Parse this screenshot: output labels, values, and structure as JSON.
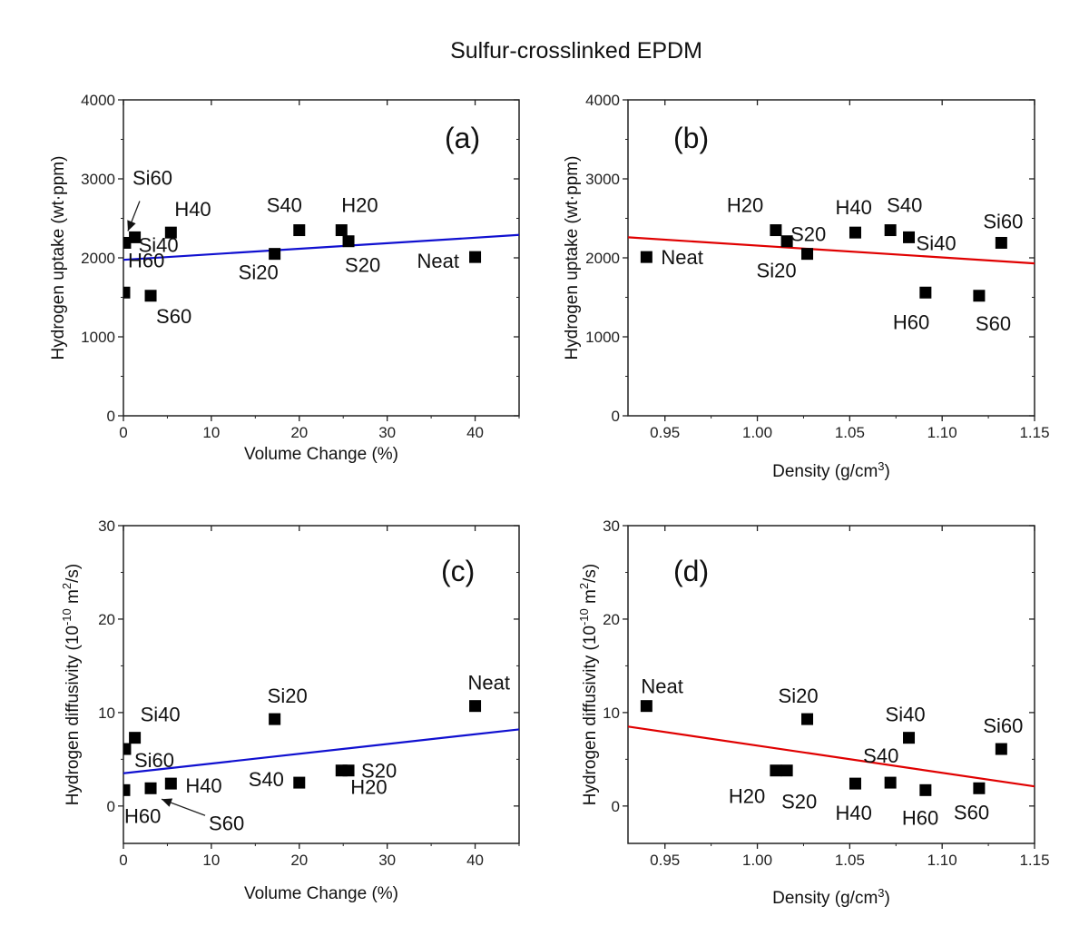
{
  "title": "Sulfur-crosslinked EPDM",
  "chart_data": [
    {
      "id": "a",
      "type": "scatter",
      "panel_label": "(a)",
      "xlabel": "Volume Change (%)",
      "ylabel": "Hydrogen uptake (wt·ppm)",
      "xlim": [
        0,
        45
      ],
      "ylim": [
        0,
        4000
      ],
      "xticks": [
        0,
        10,
        20,
        30,
        40
      ],
      "xtick_labels": [
        "0",
        "10",
        "20",
        "30",
        "40"
      ],
      "yticks": [
        0,
        1000,
        2000,
        3000,
        4000
      ],
      "ytick_labels": [
        "0",
        "1000",
        "2000",
        "3000",
        "4000"
      ],
      "marker_color": "#000000",
      "fit_line": {
        "color": "#1010d0",
        "x": [
          0,
          45
        ],
        "y": [
          1975,
          2290
        ]
      },
      "points": [
        {
          "name": "Si60",
          "x": 0.2,
          "y": 2190
        },
        {
          "name": "Si40",
          "x": 1.3,
          "y": 2260
        },
        {
          "name": "H60",
          "x": 0.1,
          "y": 1560
        },
        {
          "name": "S60",
          "x": 3.1,
          "y": 1520
        },
        {
          "name": "H40",
          "x": 5.4,
          "y": 2320
        },
        {
          "name": "Si20",
          "x": 17.2,
          "y": 2050
        },
        {
          "name": "S40",
          "x": 20.0,
          "y": 2350
        },
        {
          "name": "H20",
          "x": 24.8,
          "y": 2350
        },
        {
          "name": "S20",
          "x": 25.6,
          "y": 2210
        },
        {
          "name": "Neat",
          "x": 40.0,
          "y": 2010
        }
      ],
      "annotations": [
        {
          "text": "Si60",
          "arrow_to": "Si60"
        }
      ]
    },
    {
      "id": "b",
      "type": "scatter",
      "panel_label": "(b)",
      "xlabel": "Density (g/cm3)",
      "ylabel": "Hydrogen uptake (wt·ppm)",
      "xlim": [
        0.93,
        1.15
      ],
      "ylim": [
        0,
        4000
      ],
      "xticks": [
        0.95,
        1.0,
        1.05,
        1.1,
        1.15
      ],
      "xtick_labels": [
        "0.95",
        "1.00",
        "1.05",
        "1.10",
        "1.15"
      ],
      "yticks": [
        0,
        1000,
        2000,
        3000,
        4000
      ],
      "ytick_labels": [
        "0",
        "1000",
        "2000",
        "3000",
        "4000"
      ],
      "marker_color": "#000000",
      "fit_line": {
        "color": "#e00000",
        "x": [
          0.93,
          1.15
        ],
        "y": [
          2260,
          1930
        ]
      },
      "points": [
        {
          "name": "Neat",
          "x": 0.94,
          "y": 2010
        },
        {
          "name": "H20",
          "x": 1.01,
          "y": 2350
        },
        {
          "name": "S20",
          "x": 1.016,
          "y": 2210
        },
        {
          "name": "Si20",
          "x": 1.027,
          "y": 2050
        },
        {
          "name": "H40",
          "x": 1.053,
          "y": 2320
        },
        {
          "name": "S40",
          "x": 1.072,
          "y": 2350
        },
        {
          "name": "Si40",
          "x": 1.082,
          "y": 2260
        },
        {
          "name": "H60",
          "x": 1.091,
          "y": 1560
        },
        {
          "name": "S60",
          "x": 1.12,
          "y": 1520
        },
        {
          "name": "Si60",
          "x": 1.132,
          "y": 2190
        }
      ]
    },
    {
      "id": "c",
      "type": "scatter",
      "panel_label": "(c)",
      "xlabel": "Volume Change (%)",
      "ylabel": "Hydrogen diffusivity (10-10 m2/s)",
      "xlim": [
        0,
        45
      ],
      "ylim": [
        -4,
        30
      ],
      "xticks": [
        0,
        10,
        20,
        30,
        40
      ],
      "xtick_labels": [
        "0",
        "10",
        "20",
        "30",
        "40"
      ],
      "yticks": [
        0,
        10,
        20,
        30
      ],
      "ytick_labels": [
        "0",
        "10",
        "20",
        "30"
      ],
      "marker_color": "#000000",
      "fit_line": {
        "color": "#1010d0",
        "x": [
          0,
          45
        ],
        "y": [
          3.5,
          8.2
        ]
      },
      "points": [
        {
          "name": "Si60",
          "x": 0.2,
          "y": 6.1
        },
        {
          "name": "Si40",
          "x": 1.3,
          "y": 7.3
        },
        {
          "name": "H60",
          "x": 0.1,
          "y": 1.7
        },
        {
          "name": "S60",
          "x": 3.1,
          "y": 1.9
        },
        {
          "name": "H40",
          "x": 5.4,
          "y": 2.4
        },
        {
          "name": "Si20",
          "x": 17.2,
          "y": 9.3
        },
        {
          "name": "S40",
          "x": 20.0,
          "y": 2.5
        },
        {
          "name": "H20",
          "x": 24.8,
          "y": 3.8
        },
        {
          "name": "S20",
          "x": 25.6,
          "y": 3.8
        },
        {
          "name": "Neat",
          "x": 40.0,
          "y": 10.7
        }
      ],
      "annotations": [
        {
          "text": "S60",
          "arrow_to": "S60"
        }
      ]
    },
    {
      "id": "d",
      "type": "scatter",
      "panel_label": "(d)",
      "xlabel": "Density (g/cm3)",
      "ylabel": "Hydrogen diffusivity (10-10 m2/s)",
      "xlim": [
        0.93,
        1.15
      ],
      "ylim": [
        -4,
        30
      ],
      "xticks": [
        0.95,
        1.0,
        1.05,
        1.1,
        1.15
      ],
      "xtick_labels": [
        "0.95",
        "1.00",
        "1.05",
        "1.10",
        "1.15"
      ],
      "yticks": [
        0,
        10,
        20,
        30
      ],
      "ytick_labels": [
        "0",
        "10",
        "20",
        "30"
      ],
      "marker_color": "#000000",
      "fit_line": {
        "color": "#e00000",
        "x": [
          0.93,
          1.15
        ],
        "y": [
          8.5,
          2.1
        ]
      },
      "points": [
        {
          "name": "Neat",
          "x": 0.94,
          "y": 10.7
        },
        {
          "name": "H20",
          "x": 1.01,
          "y": 3.8
        },
        {
          "name": "S20",
          "x": 1.016,
          "y": 3.8
        },
        {
          "name": "Si20",
          "x": 1.027,
          "y": 9.3
        },
        {
          "name": "H40",
          "x": 1.053,
          "y": 2.4
        },
        {
          "name": "S40",
          "x": 1.072,
          "y": 2.5
        },
        {
          "name": "Si40",
          "x": 1.082,
          "y": 7.3
        },
        {
          "name": "H60",
          "x": 1.091,
          "y": 1.7
        },
        {
          "name": "S60",
          "x": 1.12,
          "y": 1.9
        },
        {
          "name": "Si60",
          "x": 1.132,
          "y": 6.1
        }
      ]
    }
  ]
}
